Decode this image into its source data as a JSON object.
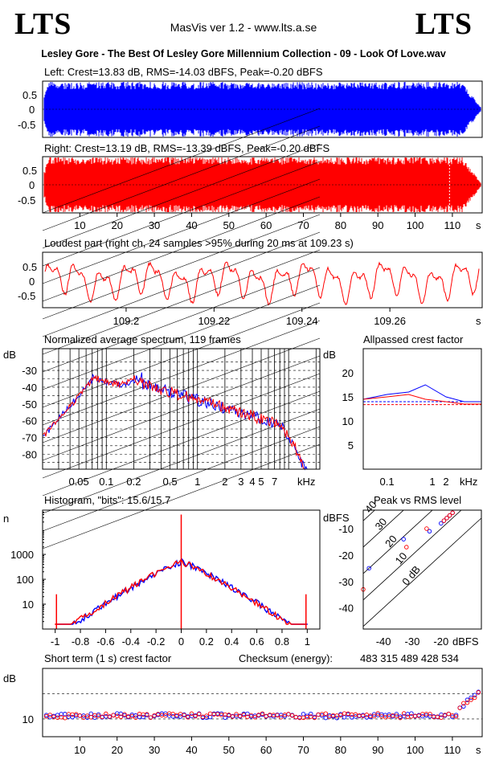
{
  "header": {
    "logo_left": "LTS",
    "logo_right": "LTS",
    "app_title": "MasVis ver 1.2 - www.lts.a.se",
    "track_title": "Lesley Gore - The Best Of Lesley Gore Millennium Collection - 09 - Look Of Love.wav"
  },
  "colors": {
    "left": "#0000ff",
    "right": "#ff0000",
    "grid": "#000000"
  },
  "chart_data": [
    {
      "type": "area",
      "title": "Left: Crest=13.83 dB, RMS=-14.03 dBFS, Peak=-0.20 dBFS",
      "series": [
        {
          "name": "Left",
          "color": "#0000ff"
        }
      ],
      "ylim": [
        -1,
        1
      ],
      "yticks": [
        "0.5",
        "0",
        "-0.5"
      ]
    },
    {
      "type": "area",
      "title": "Right: Crest=13.19 dB, RMS=-13.39 dBFS, Peak=-0.20 dBFS",
      "series": [
        {
          "name": "Right",
          "color": "#ff0000"
        }
      ],
      "ylim": [
        -1,
        1
      ],
      "yticks": [
        "0.5",
        "0",
        "-0.5"
      ],
      "xticks": [
        "10",
        "20",
        "30",
        "40",
        "50",
        "60",
        "70",
        "80",
        "90",
        "100",
        "110"
      ],
      "xunit": "s",
      "marker_x": 109.23,
      "xlim": [
        0,
        118
      ]
    },
    {
      "type": "line",
      "title": "Loudest part (right ch, 24 samples >95% during 20 ms at 109.23 s)",
      "ylim": [
        -1,
        1
      ],
      "yticks": [
        "0.5",
        "0",
        "-0.5"
      ],
      "xticks": [
        "109.2",
        "109.22",
        "109.24",
        "109.26"
      ],
      "xunit": "s",
      "xlim": [
        109.181,
        109.281
      ]
    },
    {
      "type": "line",
      "title": "Normalized average spectrum, 119 frames",
      "ylabel": "dB",
      "yticks": [
        "-30",
        "-40",
        "-50",
        "-60",
        "-70",
        "-80"
      ],
      "xticks": [
        "0.05",
        "0.1",
        "0.2",
        "0.5",
        "1",
        "2",
        "3",
        "4",
        "5",
        "7"
      ],
      "xunit": "kHz",
      "xscale": "log",
      "ylim": [
        -89,
        -17
      ],
      "xlim": [
        0.02,
        22
      ]
    },
    {
      "type": "line",
      "title": "Allpassed crest factor",
      "ylabel": "dB",
      "yticks": [
        "20",
        "15",
        "10",
        "5"
      ],
      "xticks": [
        "0.1",
        "1",
        "2"
      ],
      "xunit": "kHz",
      "xscale": "log",
      "ylim": [
        0,
        25
      ],
      "xlim": [
        0.03,
        12
      ],
      "series": [
        {
          "color": "#0000ff",
          "x": [
            0.03,
            0.1,
            0.3,
            0.7,
            2,
            5,
            12
          ],
          "y": [
            14.5,
            15.5,
            16,
            17.5,
            15,
            14,
            14
          ]
        },
        {
          "color": "#ff0000",
          "x": [
            0.03,
            0.1,
            0.3,
            0.7,
            2,
            5,
            12
          ],
          "y": [
            14.5,
            15,
            15.5,
            14.5,
            14,
            13.5,
            13.5
          ]
        }
      ],
      "reference": [
        {
          "color": "#0000ff",
          "y": 14
        },
        {
          "color": "#ff0000",
          "y": 13.4
        }
      ]
    },
    {
      "type": "bar",
      "title": "Histogram, \"bits\": 15.6/15.7",
      "ylabel": "n",
      "yscale": "log",
      "yticks": [
        "1000",
        "100",
        "10"
      ],
      "xticks": [
        "-1",
        "-0.8",
        "-0.6",
        "-0.4",
        "-0.2",
        "0",
        "0.2",
        "0.4",
        "0.6",
        "0.8",
        "1"
      ],
      "ylim": [
        1,
        60000
      ],
      "xlim": [
        -1.1,
        1.1
      ]
    },
    {
      "type": "scatter",
      "title": "Peak vs RMS level",
      "ylabel": "dBFS",
      "xlabel": "dBFS",
      "xticks": [
        "-40",
        "-30",
        "-20"
      ],
      "yticks": [
        "-10",
        "-20",
        "-30",
        "-40"
      ],
      "diagonal_labels": [
        "40",
        "30",
        "20",
        "10",
        "0 dB"
      ],
      "xlim": [
        -47,
        -6
      ],
      "ylim": [
        -48,
        -3
      ],
      "series": [
        {
          "color": "#0000ff",
          "x": [
            -45,
            -33,
            -24,
            -20,
            -19,
            -18,
            -17,
            -16
          ],
          "y": [
            -25,
            -14,
            -11,
            -8,
            -7,
            -6,
            -5,
            -4
          ]
        },
        {
          "color": "#ff0000",
          "x": [
            -47,
            -32,
            -25,
            -19,
            -18,
            -17,
            -16
          ],
          "y": [
            -33,
            -17,
            -10,
            -7,
            -6,
            -5,
            -4
          ]
        }
      ]
    },
    {
      "type": "scatter",
      "title": "Short term (1 s) crest factor",
      "ylabel": "dB",
      "yticks": [
        "10"
      ],
      "xticks": [
        "10",
        "20",
        "30",
        "40",
        "50",
        "60",
        "70",
        "80",
        "90",
        "100",
        "110"
      ],
      "xunit": "s",
      "xlim": [
        0,
        118
      ],
      "ylim": [
        3,
        30
      ],
      "reference_lines": [
        10,
        20
      ],
      "checksum_label": "Checksum (energy):",
      "checksum_value": "483 315 489 428 534"
    }
  ]
}
